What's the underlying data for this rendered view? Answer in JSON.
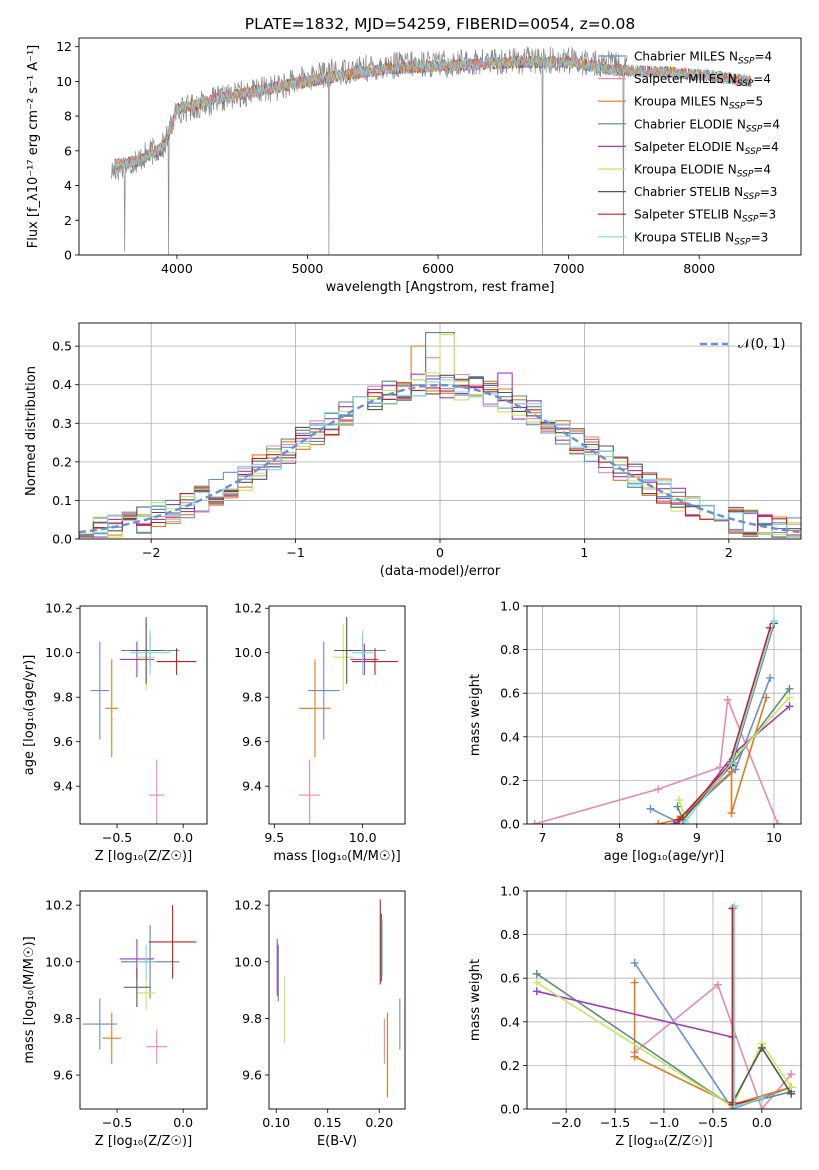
{
  "figure": {
    "title": "PLATE=1832, MJD=54259, FIBERID=0054, z=0.08"
  },
  "colors": {
    "Chabrier MILES": "#6a8fd6",
    "Salpeter MILES": "#e88ab2",
    "Kroupa MILES": "#e07b1f",
    "Chabrier ELODIE": "#5f8a80",
    "Salpeter ELODIE": "#a03cc0",
    "Kroupa ELODIE": "#c8e860",
    "Chabrier STELIB": "#555555",
    "Salpeter STELIB": "#c81e1e",
    "Kroupa STELIB": "#7fd8e0",
    "data": "#888888",
    "gaussian": "#6a8fd6"
  },
  "chart_data": [
    {
      "id": "spectrum",
      "type": "line",
      "title": "PLATE=1832, MJD=54259, FIBERID=0054, z=0.08",
      "xlabel": "wavelength [Angstrom, rest frame]",
      "ylabel": "Flux [f_λ10⁻¹⁷ erg cm⁻² s⁻¹ A⁻¹]",
      "xlim": [
        3250,
        8780
      ],
      "ylim": [
        0,
        12.5
      ],
      "xticks": [
        "4000",
        "5000",
        "6000",
        "7000",
        "8000"
      ],
      "yticks": [
        "0",
        "2",
        "4",
        "6",
        "8",
        "10",
        "12"
      ],
      "grid": false,
      "legend_position": "upper-right",
      "legend": [
        {
          "model": "Chabrier MILES",
          "nssp": "4",
          "style": "line"
        },
        {
          "model": "Salpeter MILES",
          "nssp": "4",
          "style": "line"
        },
        {
          "model": "Kroupa MILES",
          "nssp": "5",
          "style": "line"
        },
        {
          "model": "Chabrier ELODIE",
          "nssp": "4",
          "style": "line"
        },
        {
          "model": "Salpeter ELODIE",
          "nssp": "4",
          "style": "line"
        },
        {
          "model": "Kroupa ELODIE",
          "nssp": "4",
          "style": "line"
        },
        {
          "model": "Chabrier STELIB",
          "nssp": "3",
          "style": "line"
        },
        {
          "model": "Salpeter STELIB",
          "nssp": "3",
          "style": "line"
        },
        {
          "model": "Kroupa STELIB",
          "nssp": "3",
          "style": "line"
        }
      ],
      "continuum": {
        "x": [
          3500,
          3700,
          3900,
          4000,
          4200,
          4500,
          4800,
          5000,
          5200,
          5500,
          5800,
          6000,
          6300,
          6600,
          7000,
          7300,
          7450
        ],
        "y": [
          4.8,
          5.5,
          6.3,
          8.3,
          8.7,
          9.3,
          9.7,
          10.2,
          10.5,
          10.8,
          11.0,
          11.0,
          11.1,
          11.2,
          11.2,
          11.0,
          10.8
        ]
      },
      "model_continuum": {
        "x": [
          3520,
          3700,
          3900,
          4000,
          4200,
          4500,
          4800,
          5000,
          5300,
          5600,
          6000,
          6300,
          6600,
          7000,
          7300,
          7500,
          7800,
          8100,
          8400
        ],
        "y": [
          5.2,
          5.4,
          6.2,
          8.4,
          8.8,
          9.3,
          9.7,
          10.0,
          10.4,
          10.7,
          10.9,
          11.0,
          11.1,
          11.1,
          10.7,
          10.6,
          10.5,
          10.3,
          10.0
        ]
      },
      "absorption_features": [
        {
          "x": 3600,
          "y": 0.2
        },
        {
          "x": 3935,
          "y": 0.0
        },
        {
          "x": 5165,
          "y": 0.0
        },
        {
          "x": 6800,
          "y": 0.0
        },
        {
          "x": 7420,
          "y": 0.0
        }
      ]
    },
    {
      "id": "residuals",
      "type": "histogram",
      "xlabel": "(data-model)/error",
      "ylabel": "Normed distribution",
      "xlim": [
        -2.5,
        2.5
      ],
      "ylim": [
        0,
        0.56
      ],
      "xticks": [
        "-2",
        "-1",
        "0",
        "1",
        "2"
      ],
      "yticks": [
        "0.0",
        "0.1",
        "0.2",
        "0.3",
        "0.4",
        "0.5"
      ],
      "grid": true,
      "legend_position": "upper-right",
      "legend": [
        {
          "label": "𝒩(0, 1)",
          "style": "dashed"
        }
      ],
      "bin_width": 0.1,
      "bin_start": -2.5,
      "reference_profile": [
        0.02,
        0.025,
        0.03,
        0.035,
        0.04,
        0.045,
        0.05,
        0.06,
        0.065,
        0.08,
        0.09,
        0.1,
        0.12,
        0.13,
        0.15,
        0.16,
        0.18,
        0.2,
        0.22,
        0.23,
        0.25,
        0.27,
        0.28,
        0.3,
        0.31,
        0.33,
        0.34,
        0.36,
        0.37,
        0.38,
        0.39,
        0.39,
        0.4,
        0.4,
        0.41,
        0.41,
        0.4,
        0.4,
        0.39,
        0.38,
        0.37,
        0.36,
        0.35,
        0.33,
        0.32,
        0.3,
        0.29,
        0.27,
        0.25,
        0.24,
        0.22,
        0.21,
        0.19,
        0.17,
        0.16,
        0.14,
        0.13,
        0.11,
        0.1,
        0.09,
        0.08,
        0.07,
        0.06,
        0.055,
        0.05,
        0.045,
        0.04,
        0.035,
        0.03,
        0.025,
        0.022,
        0.02,
        0.02,
        0.018,
        0.017,
        0.015,
        0.015,
        0.014,
        0.013,
        0.012,
        0.01,
        0.01,
        0.01,
        0.01,
        0.01,
        0.01,
        0.01,
        0.01,
        0.01,
        0.01,
        0.01,
        0.01,
        0.01,
        0.01,
        0.01,
        0.01,
        0.01,
        0.01,
        0.01,
        0.01
      ],
      "highlights": [
        {
          "x": 0.0,
          "y": 0.535,
          "series": "Chabrier ELODIE"
        },
        {
          "x": 0.05,
          "y": 0.53,
          "series": "Kroupa ELODIE"
        },
        {
          "x": -0.15,
          "y": 0.5,
          "series": "Kroupa MILES"
        },
        {
          "x": -0.05,
          "y": 0.47,
          "series": "Salpeter MILES"
        },
        {
          "x": 0.45,
          "y": 0.43,
          "series": "Salpeter ELODIE"
        }
      ]
    },
    {
      "id": "age_vs_Z",
      "type": "scatter_errorbar",
      "xlabel": "Z [log₁₀(Z/Z☉)]",
      "ylabel": "age  [log₁₀(age/yr)]",
      "xlim": [
        -0.78,
        0.18
      ],
      "ylim": [
        9.23,
        10.21
      ],
      "xticks": [
        "-0.5",
        "0.0"
      ],
      "xtick_values": [
        -0.5,
        0.0
      ],
      "yticks": [
        "9.4",
        "9.6",
        "9.8",
        "10.0",
        "10.2"
      ],
      "ytick_values": [
        9.4,
        9.6,
        9.8,
        10.0,
        10.2
      ],
      "grid": false,
      "points": [
        {
          "series": "Chabrier MILES",
          "x": -0.63,
          "xerr": 0.07,
          "y": 9.83,
          "yerr": 0.22
        },
        {
          "series": "Salpeter MILES",
          "x": -0.2,
          "xerr": 0.06,
          "y": 9.36,
          "yerr": 0.16
        },
        {
          "series": "Kroupa MILES",
          "x": -0.54,
          "xerr": 0.05,
          "y": 9.75,
          "yerr": 0.22
        },
        {
          "series": "Chabrier ELODIE",
          "x": -0.25,
          "xerr": 0.22,
          "y": 10.01,
          "yerr": 0.07
        },
        {
          "series": "Salpeter ELODIE",
          "x": -0.35,
          "xerr": 0.13,
          "y": 9.97,
          "yerr": 0.08
        },
        {
          "series": "Kroupa ELODIE",
          "x": -0.28,
          "xerr": 0.07,
          "y": 9.98,
          "yerr": 0.15
        },
        {
          "series": "Chabrier STELIB",
          "x": -0.28,
          "xerr": 0.12,
          "y": 10.01,
          "yerr": 0.15
        },
        {
          "series": "Salpeter STELIB",
          "x": -0.05,
          "xerr": 0.15,
          "y": 9.96,
          "yerr": 0.06
        },
        {
          "series": "Kroupa STELIB",
          "x": -0.25,
          "xerr": 0.15,
          "y": 10.0,
          "yerr": 0.1
        }
      ]
    },
    {
      "id": "age_vs_mass",
      "type": "scatter_errorbar",
      "xlabel": "mass [log₁₀(M/M☉)]",
      "ylabel": "",
      "xlim": [
        9.47,
        10.24
      ],
      "ylim": [
        9.23,
        10.21
      ],
      "xticks": [
        "9.5",
        "10.0"
      ],
      "xtick_values": [
        9.5,
        10.0
      ],
      "yticks": [
        "9.4",
        "9.6",
        "9.8",
        "10.0",
        "10.2"
      ],
      "ytick_values": [
        9.4,
        9.6,
        9.8,
        10.0,
        10.2
      ],
      "grid": false,
      "points": [
        {
          "series": "Chabrier MILES",
          "x": 9.78,
          "xerr": 0.09,
          "y": 9.83,
          "yerr": 0.22
        },
        {
          "series": "Salpeter MILES",
          "x": 9.7,
          "xerr": 0.06,
          "y": 9.36,
          "yerr": 0.16
        },
        {
          "series": "Kroupa MILES",
          "x": 9.73,
          "xerr": 0.09,
          "y": 9.75,
          "yerr": 0.22
        },
        {
          "series": "Chabrier ELODIE",
          "x": 10.0,
          "xerr": 0.13,
          "y": 10.01,
          "yerr": 0.06
        },
        {
          "series": "Salpeter ELODIE",
          "x": 10.01,
          "xerr": 0.08,
          "y": 9.97,
          "yerr": 0.07
        },
        {
          "series": "Kroupa ELODIE",
          "x": 9.89,
          "xerr": 0.06,
          "y": 9.98,
          "yerr": 0.15
        },
        {
          "series": "Chabrier STELIB",
          "x": 9.91,
          "xerr": 0.07,
          "y": 10.01,
          "yerr": 0.15
        },
        {
          "series": "Salpeter STELIB",
          "x": 10.07,
          "xerr": 0.13,
          "y": 9.96,
          "yerr": 0.06
        },
        {
          "series": "Kroupa STELIB",
          "x": 10.0,
          "xerr": 0.06,
          "y": 10.0,
          "yerr": 0.1
        }
      ]
    },
    {
      "id": "weight_vs_age",
      "type": "line",
      "xlabel": "age  [log₁₀(age/yr)]",
      "ylabel": "mass weight",
      "xlim": [
        6.8,
        10.35
      ],
      "ylim": [
        0,
        1.0
      ],
      "xticks": [
        "7",
        "8",
        "9",
        "10"
      ],
      "xtick_values": [
        7,
        8,
        9,
        10
      ],
      "yticks": [
        "0.0",
        "0.2",
        "0.4",
        "0.6",
        "0.8",
        "1.0"
      ],
      "ytick_values": [
        0,
        0.2,
        0.4,
        0.6,
        0.8,
        1.0
      ],
      "grid": true,
      "series": [
        {
          "name": "Chabrier MILES",
          "x": [
            8.4,
            8.75,
            9.5,
            9.95
          ],
          "y": [
            0.07,
            0.01,
            0.25,
            0.67
          ]
        },
        {
          "name": "Salpeter MILES",
          "x": [
            6.9,
            8.5,
            9.3,
            9.4,
            10.05
          ],
          "y": [
            0.0,
            0.16,
            0.26,
            0.57,
            0.0
          ]
        },
        {
          "name": "Kroupa MILES",
          "x": [
            8.5,
            8.75,
            9.45,
            9.45,
            9.9
          ],
          "y": [
            0.0,
            0.02,
            0.24,
            0.05,
            0.58
          ]
        },
        {
          "name": "Chabrier ELODIE",
          "x": [
            8.75,
            8.82,
            9.47,
            10.2
          ],
          "y": [
            0.08,
            0.02,
            0.28,
            0.62
          ]
        },
        {
          "name": "Salpeter ELODIE",
          "x": [
            8.7,
            8.85,
            9.5,
            10.2
          ],
          "y": [
            0.0,
            0.03,
            0.33,
            0.54
          ]
        },
        {
          "name": "Kroupa ELODIE",
          "x": [
            8.77,
            8.85,
            9.45,
            10.2
          ],
          "y": [
            0.11,
            0.03,
            0.29,
            0.58
          ]
        },
        {
          "name": "Chabrier STELIB",
          "x": [
            8.82,
            9.45,
            10.0
          ],
          "y": [
            0.02,
            0.27,
            0.92
          ]
        },
        {
          "name": "Salpeter STELIB",
          "x": [
            8.77,
            9.42,
            9.95
          ],
          "y": [
            0.02,
            0.27,
            0.9
          ]
        },
        {
          "name": "Kroupa STELIB",
          "x": [
            8.85,
            9.45,
            10.0
          ],
          "y": [
            0.01,
            0.28,
            0.93
          ]
        }
      ]
    },
    {
      "id": "mass_vs_Z",
      "type": "scatter_errorbar",
      "xlabel": "Z [log₁₀(Z/Z☉)]",
      "ylabel": "mass [log₁₀(M/M☉)]",
      "xlim": [
        -0.78,
        0.18
      ],
      "ylim": [
        9.48,
        10.25
      ],
      "xticks": [
        "-0.5",
        "0.0"
      ],
      "xtick_values": [
        -0.5,
        0.0
      ],
      "yticks": [
        "9.6",
        "9.8",
        "10.0",
        "10.2"
      ],
      "ytick_values": [
        9.6,
        9.8,
        10.0,
        10.2
      ],
      "grid": false,
      "points": [
        {
          "series": "Chabrier MILES",
          "x": -0.63,
          "xerr": 0.13,
          "y": 9.78,
          "yerr": 0.09
        },
        {
          "series": "Salpeter MILES",
          "x": -0.2,
          "xerr": 0.08,
          "y": 9.7,
          "yerr": 0.06
        },
        {
          "series": "Kroupa MILES",
          "x": -0.54,
          "xerr": 0.07,
          "y": 9.73,
          "yerr": 0.09
        },
        {
          "series": "Chabrier ELODIE",
          "x": -0.25,
          "xerr": 0.22,
          "y": 10.0,
          "yerr": 0.13
        },
        {
          "series": "Salpeter ELODIE",
          "x": -0.35,
          "xerr": 0.13,
          "y": 10.01,
          "yerr": 0.07
        },
        {
          "series": "Kroupa ELODIE",
          "x": -0.28,
          "xerr": 0.07,
          "y": 9.89,
          "yerr": 0.06
        },
        {
          "series": "Chabrier STELIB",
          "x": -0.35,
          "xerr": 0.1,
          "y": 9.91,
          "yerr": 0.07
        },
        {
          "series": "Salpeter STELIB",
          "x": -0.08,
          "xerr": 0.18,
          "y": 10.07,
          "yerr": 0.13
        },
        {
          "series": "Kroupa STELIB",
          "x": -0.28,
          "xerr": 0.07,
          "y": 10.0,
          "yerr": 0.06
        }
      ]
    },
    {
      "id": "mass_vs_ebv",
      "type": "scatter_errorbar",
      "xlabel": "E(B-V)",
      "ylabel": "",
      "xlim": [
        0.093,
        0.225
      ],
      "ylim": [
        9.48,
        10.25
      ],
      "xticks": [
        "0.10",
        "0.15",
        "0.20"
      ],
      "xtick_values": [
        0.1,
        0.15,
        0.2
      ],
      "yticks": [
        "9.6",
        "9.8",
        "10.0",
        "10.2"
      ],
      "ytick_values": [
        9.6,
        9.8,
        10.0,
        10.2
      ],
      "grid": false,
      "points": [
        {
          "series": "Chabrier MILES",
          "x": 0.22,
          "xerr": 0,
          "y": 9.78,
          "yerr": 0.09
        },
        {
          "series": "Salpeter MILES",
          "x": 0.205,
          "xerr": 0,
          "y": 9.72,
          "yerr": 0.08
        },
        {
          "series": "Kroupa MILES",
          "x": 0.208,
          "xerr": 0,
          "y": 9.67,
          "yerr": 0.15
        },
        {
          "series": "Chabrier ELODIE",
          "x": 0.102,
          "xerr": 0,
          "y": 9.96,
          "yerr": 0.1
        },
        {
          "series": "Salpeter ELODIE",
          "x": 0.101,
          "xerr": 0,
          "y": 9.98,
          "yerr": 0.1
        },
        {
          "series": "Kroupa ELODIE",
          "x": 0.108,
          "xerr": 0,
          "y": 9.83,
          "yerr": 0.12
        },
        {
          "series": "Chabrier STELIB",
          "x": 0.202,
          "xerr": 0,
          "y": 10.05,
          "yerr": 0.12
        },
        {
          "series": "Salpeter STELIB",
          "x": 0.201,
          "xerr": 0,
          "y": 10.07,
          "yerr": 0.15
        },
        {
          "series": "Kroupa STELIB",
          "x": 0.203,
          "xerr": 0,
          "y": 10.05,
          "yerr": 0.1
        }
      ]
    },
    {
      "id": "weight_vs_Z",
      "type": "line",
      "xlabel": "Z [log₁₀(Z/Z☉)]",
      "ylabel": "mass weight",
      "xlim": [
        -2.4,
        0.4
      ],
      "ylim": [
        0,
        1.0
      ],
      "xticks": [
        "-2.0",
        "-1.5",
        "-1.0",
        "-0.5",
        "0.0"
      ],
      "xtick_values": [
        -2.0,
        -1.5,
        -1.0,
        -0.5,
        0.0
      ],
      "yticks": [
        "0.0",
        "0.2",
        "0.4",
        "0.6",
        "0.8",
        "1.0"
      ],
      "ytick_values": [
        0,
        0.2,
        0.4,
        0.6,
        0.8,
        1.0
      ],
      "grid": true,
      "series": [
        {
          "name": "Chabrier MILES",
          "x": [
            -1.3,
            -0.3,
            0.3,
            0.3
          ],
          "y": [
            0.67,
            0.0,
            0.1,
            0.1
          ]
        },
        {
          "name": "Salpeter MILES",
          "x": [
            -1.3,
            -0.45,
            0.0,
            0.3
          ],
          "y": [
            0.26,
            0.57,
            0.0,
            0.16
          ]
        },
        {
          "name": "Kroupa MILES",
          "x": [
            -1.3,
            -1.3,
            -0.3,
            0.3
          ],
          "y": [
            0.58,
            0.24,
            0.02,
            0.1
          ]
        },
        {
          "name": "Chabrier ELODIE",
          "x": [
            -2.3,
            -0.3,
            0.3
          ],
          "y": [
            0.62,
            0.01,
            0.08
          ]
        },
        {
          "name": "Salpeter ELODIE",
          "x": [
            -2.3,
            -0.3
          ],
          "y": [
            0.54,
            0.33
          ]
        },
        {
          "name": "Kroupa ELODIE",
          "x": [
            -2.3,
            -0.3,
            0.0,
            0.3
          ],
          "y": [
            0.58,
            0.01,
            0.3,
            0.1
          ]
        },
        {
          "name": "Chabrier STELIB",
          "x": [
            -0.3,
            -0.3,
            0.0,
            0.3
          ],
          "y": [
            0.92,
            0.03,
            0.28,
            0.07
          ]
        },
        {
          "name": "Salpeter STELIB",
          "x": [
            -0.3,
            -0.3,
            0.0
          ],
          "y": [
            0.92,
            0.02,
            0.05
          ]
        },
        {
          "name": "Kroupa STELIB",
          "x": [
            -0.28,
            -0.28,
            0.0
          ],
          "y": [
            0.93,
            0.01,
            0.05
          ]
        }
      ]
    }
  ]
}
